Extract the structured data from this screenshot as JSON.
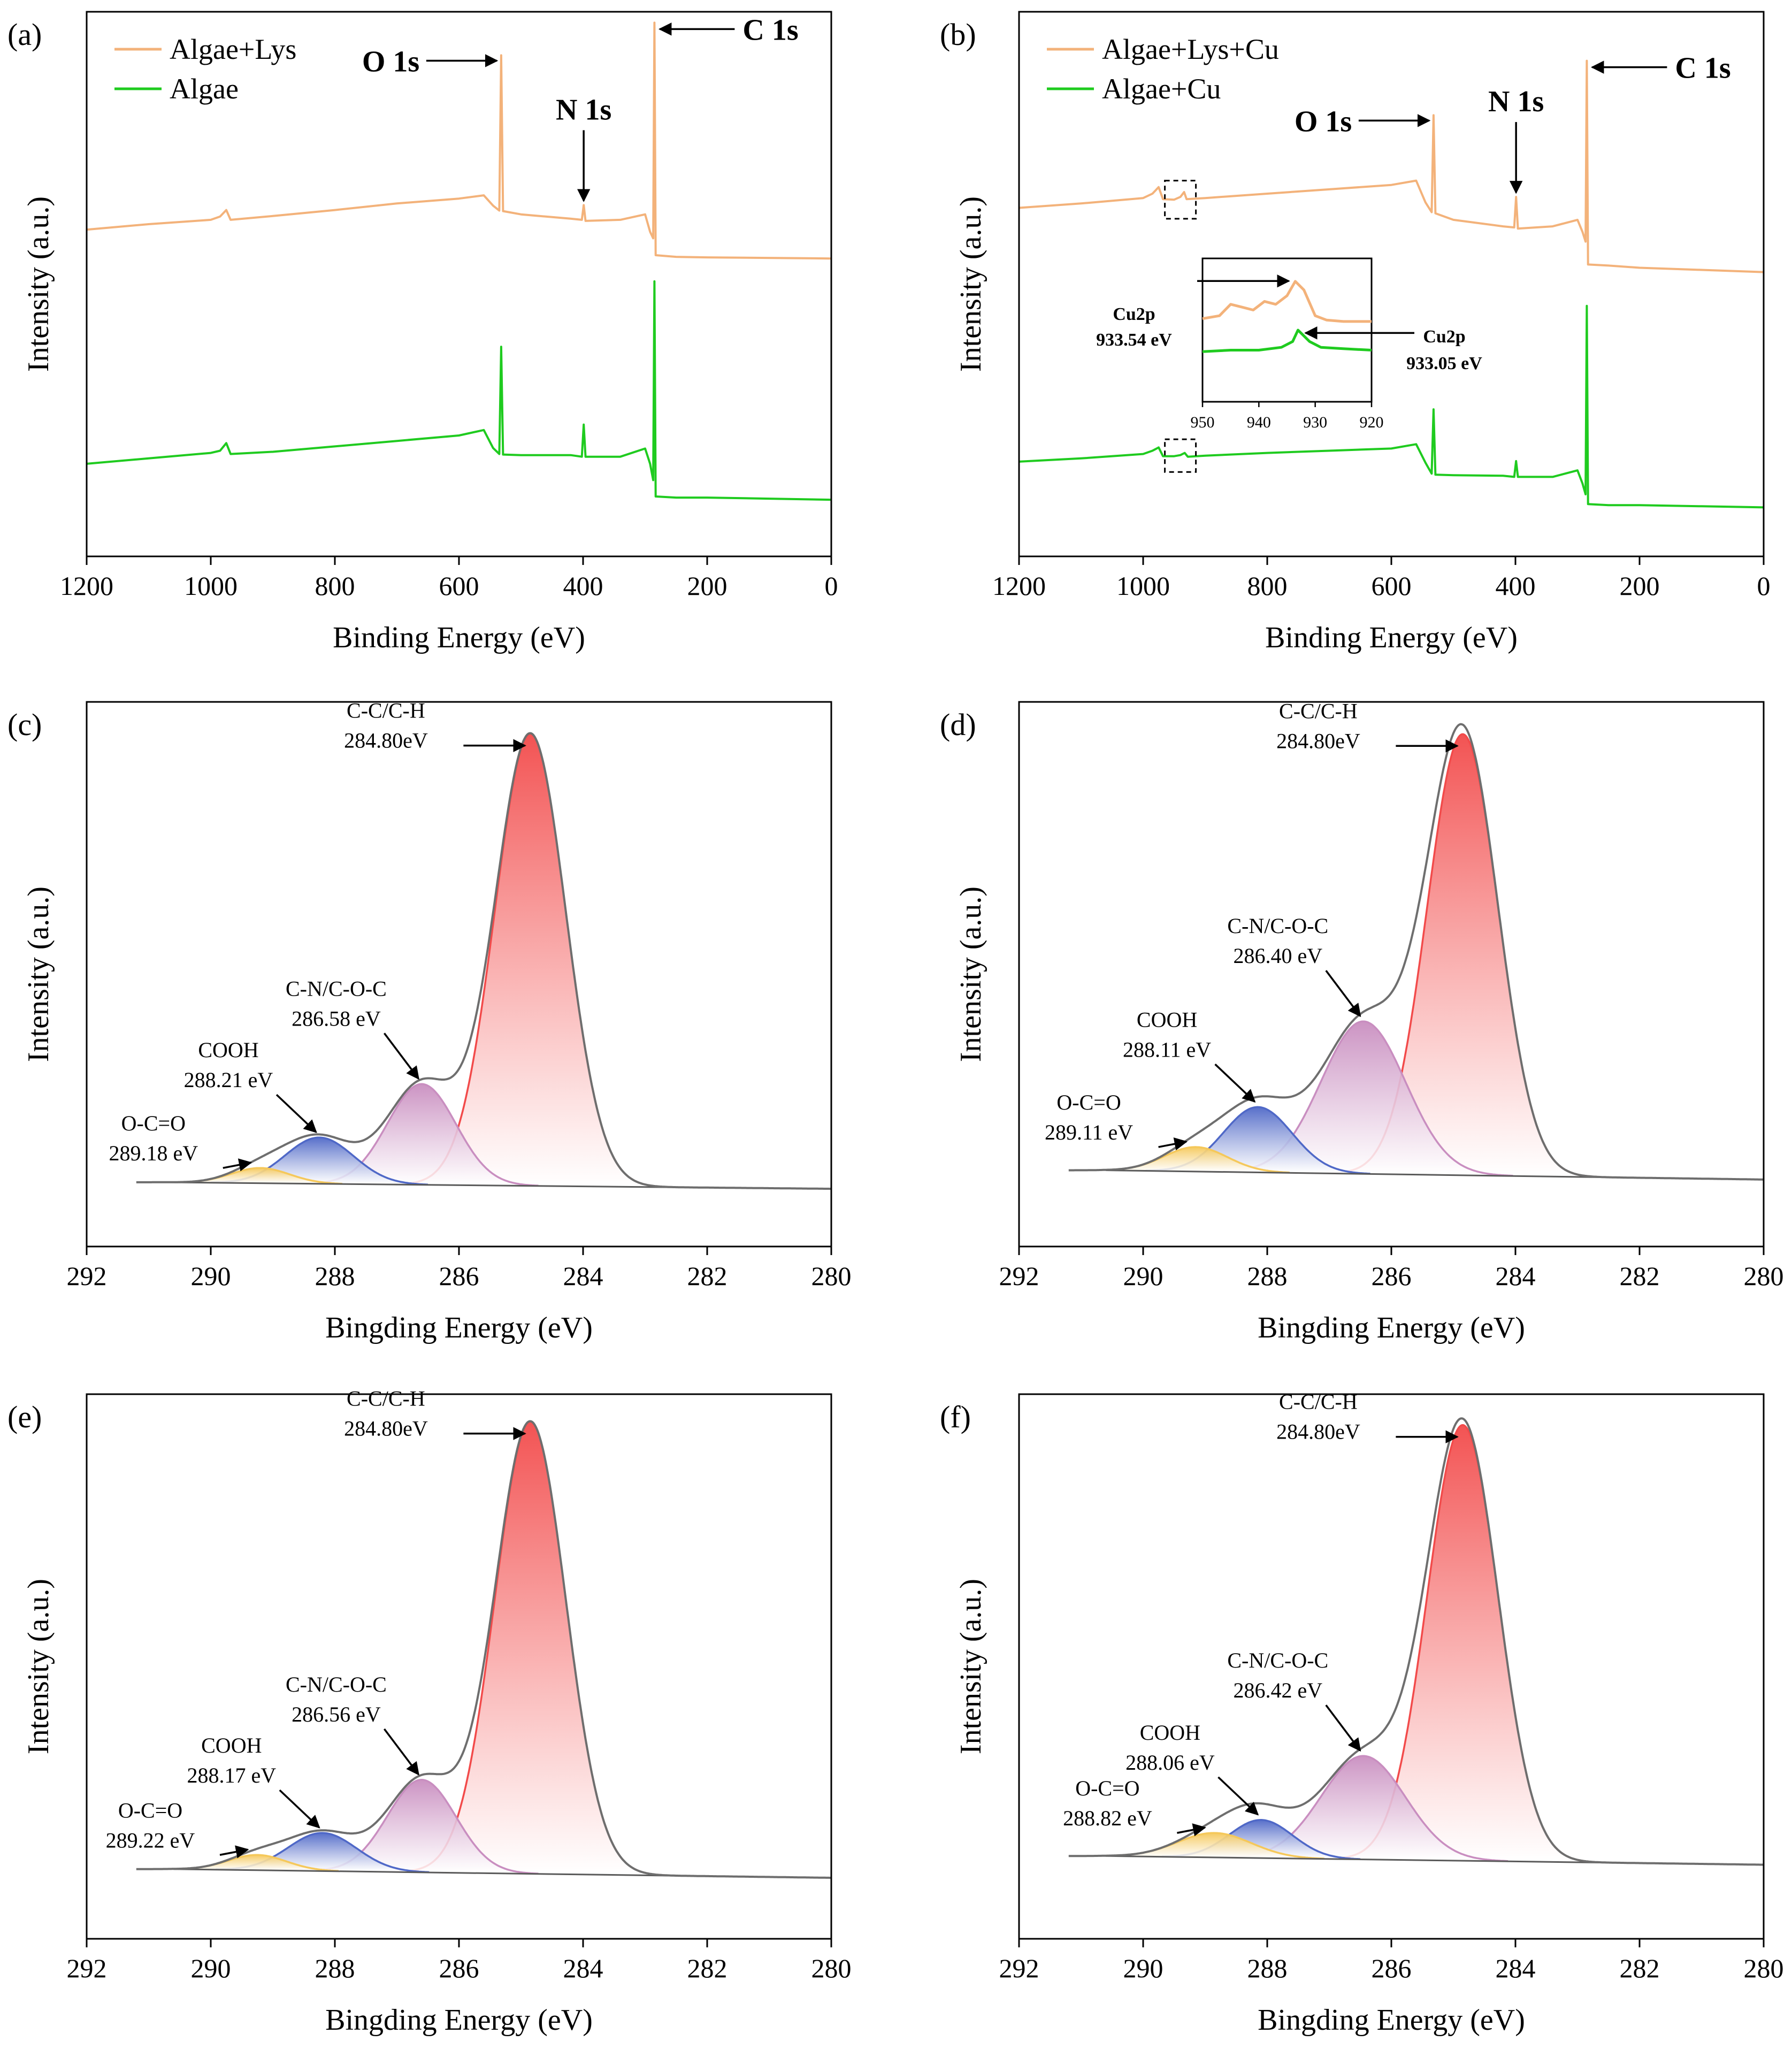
{
  "colors": {
    "orange": "#F3B27A",
    "green": "#1FCB1F",
    "envelope": "#6E6E6E",
    "baseline": "#5A5A5A",
    "red": "#F24A4A",
    "purple": "#C98EC0",
    "blue": "#4F68C7",
    "yellow": "#F5C85A"
  },
  "chart_data": [
    {
      "id": "a",
      "panel_label": "(a)",
      "type": "line",
      "title": "",
      "xlabel": "Binding Energy (eV)",
      "ylabel": "Intensity (a.u.)",
      "xlim": [
        1200,
        0
      ],
      "ylim": [
        0,
        100
      ],
      "xticks": [
        "1200",
        "1000",
        "800",
        "600",
        "400",
        "200",
        "0"
      ],
      "xtick_values": [
        1200,
        1000,
        800,
        600,
        400,
        200,
        0
      ],
      "legend": [
        {
          "label": "Algae+Lys",
          "color": "#F3B27A"
        },
        {
          "label": "Algae",
          "color": "#1FCB1F"
        }
      ],
      "series": [
        {
          "name": "Algae+Lys",
          "color": "#F3B27A",
          "points": [
            [
              1200,
              60.0
            ],
            [
              1100,
              61.0
            ],
            [
              1000,
              61.8
            ],
            [
              985,
              62.4
            ],
            [
              975,
              63.6
            ],
            [
              968,
              61.8
            ],
            [
              900,
              62.5
            ],
            [
              800,
              63.6
            ],
            [
              700,
              64.8
            ],
            [
              600,
              65.7
            ],
            [
              560,
              66.3
            ],
            [
              545,
              64.4
            ],
            [
              535,
              63.5
            ],
            [
              532,
              92.0
            ],
            [
              529,
              63.4
            ],
            [
              500,
              62.8
            ],
            [
              420,
              62.0
            ],
            [
              402,
              61.8
            ],
            [
              399,
              64.5
            ],
            [
              396,
              61.6
            ],
            [
              340,
              61.8
            ],
            [
              300,
              62.8
            ],
            [
              292,
              59.6
            ],
            [
              287,
              58.4
            ],
            [
              285,
              98.0
            ],
            [
              283,
              55.3
            ],
            [
              250,
              55.0
            ],
            [
              200,
              54.9
            ],
            [
              100,
              54.8
            ],
            [
              0,
              54.7
            ]
          ]
        },
        {
          "name": "Algae",
          "color": "#1FCB1F",
          "points": [
            [
              1200,
              17.0
            ],
            [
              1100,
              18.0
            ],
            [
              1000,
              19.0
            ],
            [
              985,
              19.4
            ],
            [
              975,
              20.8
            ],
            [
              968,
              18.8
            ],
            [
              900,
              19.2
            ],
            [
              800,
              20.2
            ],
            [
              700,
              21.2
            ],
            [
              600,
              22.2
            ],
            [
              560,
              23.2
            ],
            [
              545,
              19.9
            ],
            [
              535,
              18.8
            ],
            [
              532,
              38.5
            ],
            [
              529,
              18.7
            ],
            [
              500,
              18.6
            ],
            [
              420,
              18.6
            ],
            [
              402,
              18.3
            ],
            [
              399,
              24.2
            ],
            [
              396,
              18.3
            ],
            [
              340,
              18.3
            ],
            [
              300,
              19.8
            ],
            [
              292,
              17.0
            ],
            [
              287,
              14.0
            ],
            [
              285,
              50.5
            ],
            [
              283,
              11.0
            ],
            [
              250,
              10.8
            ],
            [
              200,
              10.8
            ],
            [
              100,
              10.6
            ],
            [
              0,
              10.4
            ]
          ]
        }
      ],
      "annotations": [
        {
          "text": "C 1s",
          "x": 285,
          "y": 98.0
        },
        {
          "text": "O 1s",
          "x": 532,
          "y": 92.0
        },
        {
          "text": "N 1s",
          "x": 399,
          "y": 64.5
        }
      ]
    },
    {
      "id": "b",
      "panel_label": "(b)",
      "type": "line",
      "title": "",
      "xlabel": "Binding Energy (eV)",
      "ylabel": "Intensity (a.u.)",
      "xlim": [
        1200,
        0
      ],
      "ylim": [
        0,
        100
      ],
      "xticks": [
        "1200",
        "1000",
        "800",
        "600",
        "400",
        "200",
        "0"
      ],
      "xtick_values": [
        1200,
        1000,
        800,
        600,
        400,
        200,
        0
      ],
      "legend": [
        {
          "label": "Algae+Lys+Cu",
          "color": "#F3B27A"
        },
        {
          "label": "Algae+Cu",
          "color": "#1FCB1F"
        }
      ],
      "series": [
        {
          "name": "Algae+Lys+Cu",
          "color": "#F3B27A",
          "points": [
            [
              1200,
              64.0
            ],
            [
              1100,
              64.8
            ],
            [
              1000,
              65.8
            ],
            [
              985,
              66.6
            ],
            [
              975,
              67.8
            ],
            [
              968,
              65.6
            ],
            [
              950,
              65.5
            ],
            [
              940,
              66.0
            ],
            [
              934,
              66.9
            ],
            [
              930,
              65.6
            ],
            [
              900,
              65.8
            ],
            [
              800,
              66.6
            ],
            [
              700,
              67.4
            ],
            [
              600,
              68.2
            ],
            [
              560,
              69.0
            ],
            [
              545,
              65.0
            ],
            [
              535,
              63.2
            ],
            [
              532,
              81.0
            ],
            [
              529,
              63.0
            ],
            [
              500,
              61.8
            ],
            [
              420,
              60.6
            ],
            [
              402,
              60.4
            ],
            [
              399,
              66.0
            ],
            [
              396,
              60.2
            ],
            [
              340,
              60.6
            ],
            [
              300,
              61.8
            ],
            [
              292,
              59.6
            ],
            [
              287,
              57.8
            ],
            [
              285,
              91.0
            ],
            [
              283,
              53.6
            ],
            [
              250,
              53.4
            ],
            [
              200,
              53.0
            ],
            [
              100,
              52.6
            ],
            [
              0,
              52.2
            ]
          ]
        },
        {
          "name": "Algae+Cu",
          "color": "#1FCB1F",
          "points": [
            [
              1200,
              17.4
            ],
            [
              1100,
              18.0
            ],
            [
              1000,
              18.8
            ],
            [
              985,
              19.4
            ],
            [
              975,
              20.0
            ],
            [
              968,
              18.4
            ],
            [
              950,
              18.4
            ],
            [
              940,
              18.6
            ],
            [
              933,
              19.0
            ],
            [
              928,
              18.3
            ],
            [
              900,
              18.5
            ],
            [
              800,
              19.0
            ],
            [
              700,
              19.4
            ],
            [
              600,
              19.8
            ],
            [
              560,
              20.6
            ],
            [
              545,
              17.2
            ],
            [
              535,
              15.2
            ],
            [
              532,
              27.0
            ],
            [
              529,
              15.0
            ],
            [
              500,
              14.9
            ],
            [
              420,
              14.8
            ],
            [
              402,
              14.6
            ],
            [
              399,
              17.5
            ],
            [
              396,
              14.6
            ],
            [
              340,
              14.6
            ],
            [
              300,
              15.8
            ],
            [
              292,
              13.4
            ],
            [
              287,
              11.4
            ],
            [
              285,
              46.0
            ],
            [
              283,
              9.6
            ],
            [
              250,
              9.4
            ],
            [
              200,
              9.4
            ],
            [
              100,
              9.2
            ],
            [
              0,
              9.0
            ]
          ]
        }
      ],
      "annotations": [
        {
          "text": "C 1s",
          "x": 285,
          "y": 91.0
        },
        {
          "text": "O 1s",
          "x": 532,
          "y": 81.0
        },
        {
          "text": "N 1s",
          "x": 399,
          "y": 66.0
        }
      ],
      "inset": {
        "xlim": [
          950,
          920
        ],
        "xticks": [
          "950",
          "940",
          "930",
          "920"
        ],
        "xtick_values": [
          950,
          940,
          930,
          920
        ],
        "ylim": [
          0,
          100
        ],
        "series": [
          {
            "name": "Algae+Lys+Cu",
            "color": "#F3B27A",
            "points": [
              [
                950,
                58
              ],
              [
                947,
                60
              ],
              [
                945,
                68
              ],
              [
                943,
                66
              ],
              [
                941,
                64
              ],
              [
                939,
                70
              ],
              [
                937,
                68
              ],
              [
                935,
                74
              ],
              [
                933.54,
                84
              ],
              [
                932,
                78
              ],
              [
                930,
                60
              ],
              [
                928,
                57
              ],
              [
                925,
                56
              ],
              [
                920,
                56
              ]
            ]
          },
          {
            "name": "Algae+Cu",
            "color": "#1FCB1F",
            "points": [
              [
                950,
                35
              ],
              [
                945,
                36
              ],
              [
                940,
                36
              ],
              [
                936,
                38
              ],
              [
                934,
                42
              ],
              [
                933.05,
                50
              ],
              [
                931,
                42
              ],
              [
                929,
                38
              ],
              [
                925,
                37
              ],
              [
                920,
                36
              ]
            ]
          }
        ],
        "annotations": [
          {
            "text": "Cu2p",
            "value": "933.54 eV"
          },
          {
            "text": "Cu2p",
            "value": "933.05 eV"
          }
        ]
      }
    },
    {
      "id": "c",
      "panel_label": "(c)",
      "type": "area",
      "xlabel": "Bingding Energy (eV)",
      "ylabel": "Intensity (a.u.)",
      "xlim": [
        292,
        280
      ],
      "ylim": [
        0,
        100
      ],
      "xticks": [
        "292",
        "290",
        "288",
        "286",
        "284",
        "282",
        "280"
      ],
      "xtick_values": [
        292,
        290,
        288,
        286,
        284,
        282,
        280
      ],
      "baseline": [
        [
          290.8,
          11.8
        ],
        [
          280,
          10.6
        ]
      ],
      "peaks": [
        {
          "label": "C-C/C-H",
          "energy": "284.80eV",
          "center": 284.85,
          "height": 83,
          "fwhm": 1.35,
          "color": "#F24A4A"
        },
        {
          "label": "C-N/C-O-C",
          "energy": "286.58 eV",
          "center": 286.6,
          "height": 18.5,
          "fwhm": 1.3,
          "color": "#C98EC0"
        },
        {
          "label": "COOH",
          "energy": "288.21 eV",
          "center": 288.25,
          "height": 8.5,
          "fwhm": 1.3,
          "color": "#4F68C7"
        },
        {
          "label": "O-C=O",
          "energy": "289.18 eV",
          "center": 289.2,
          "height": 2.8,
          "fwhm": 1.1,
          "color": "#F5C85A"
        }
      ]
    },
    {
      "id": "d",
      "panel_label": "(d)",
      "type": "area",
      "xlabel": "Bingding Energy (eV)",
      "ylabel": "Intensity (a.u.)",
      "xlim": [
        292,
        280
      ],
      "ylim": [
        0,
        100
      ],
      "xticks": [
        "292",
        "290",
        "288",
        "286",
        "284",
        "282",
        "280"
      ],
      "xtick_values": [
        292,
        290,
        288,
        286,
        284,
        282,
        280
      ],
      "baseline": [
        [
          290.6,
          14.0
        ],
        [
          280,
          12.3
        ]
      ],
      "peaks": [
        {
          "label": "C-C/C-H",
          "energy": "284.80eV",
          "center": 284.85,
          "height": 81,
          "fwhm": 1.35,
          "color": "#F24A4A"
        },
        {
          "label": "C-N/C-O-C",
          "energy": "286.40 eV",
          "center": 286.45,
          "height": 28,
          "fwhm": 1.6,
          "color": "#C98EC0"
        },
        {
          "label": "COOH",
          "energy": "288.11 eV",
          "center": 288.15,
          "height": 12,
          "fwhm": 1.3,
          "color": "#4F68C7"
        },
        {
          "label": "O-C=O",
          "energy": "289.11 eV",
          "center": 289.15,
          "height": 4.5,
          "fwhm": 1.2,
          "color": "#F5C85A"
        }
      ]
    },
    {
      "id": "e",
      "panel_label": "(e)",
      "type": "area",
      "xlabel": "Bingding Energy (eV)",
      "ylabel": "Intensity (a.u.)",
      "xlim": [
        292,
        280
      ],
      "ylim": [
        0,
        100
      ],
      "xticks": [
        "292",
        "290",
        "288",
        "286",
        "284",
        "282",
        "280"
      ],
      "xtick_values": [
        292,
        290,
        288,
        286,
        284,
        282,
        280
      ],
      "baseline": [
        [
          290.6,
          12.8
        ],
        [
          280,
          11.2
        ]
      ],
      "peaks": [
        {
          "label": "C-C/C-H",
          "energy": "284.80eV",
          "center": 284.85,
          "height": 83,
          "fwhm": 1.35,
          "color": "#F24A4A"
        },
        {
          "label": "C-N/C-O-C",
          "energy": "286.56 eV",
          "center": 286.6,
          "height": 17,
          "fwhm": 1.3,
          "color": "#C98EC0"
        },
        {
          "label": "COOH",
          "energy": "288.17 eV",
          "center": 288.2,
          "height": 7,
          "fwhm": 1.3,
          "color": "#4F68C7"
        },
        {
          "label": "O-C=O",
          "energy": "289.22 eV",
          "center": 289.25,
          "height": 2.8,
          "fwhm": 1.1,
          "color": "#F5C85A"
        }
      ]
    },
    {
      "id": "f",
      "panel_label": "(f)",
      "type": "area",
      "xlabel": "Bingding Energy (eV)",
      "ylabel": "Intensity (a.u.)",
      "xlim": [
        292,
        280
      ],
      "ylim": [
        0,
        100
      ],
      "xticks": [
        "292",
        "290",
        "288",
        "286",
        "284",
        "282",
        "280"
      ],
      "xtick_values": [
        292,
        290,
        288,
        286,
        284,
        282,
        280
      ],
      "baseline": [
        [
          290.6,
          15.2
        ],
        [
          280,
          13.6
        ]
      ],
      "peaks": [
        {
          "label": "C-C/C-H",
          "energy": "284.80eV",
          "center": 284.85,
          "height": 80,
          "fwhm": 1.35,
          "color": "#F24A4A"
        },
        {
          "label": "C-N/C-O-C",
          "energy": "286.42 eV",
          "center": 286.45,
          "height": 19,
          "fwhm": 1.6,
          "color": "#C98EC0"
        },
        {
          "label": "COOH",
          "energy": "288.06 eV",
          "center": 288.1,
          "height": 7,
          "fwhm": 1.2,
          "color": "#4F68C7"
        },
        {
          "label": "O-C=O",
          "energy": "288.82 eV",
          "center": 288.85,
          "height": 4.5,
          "fwhm": 1.4,
          "color": "#F5C85A"
        }
      ]
    }
  ]
}
